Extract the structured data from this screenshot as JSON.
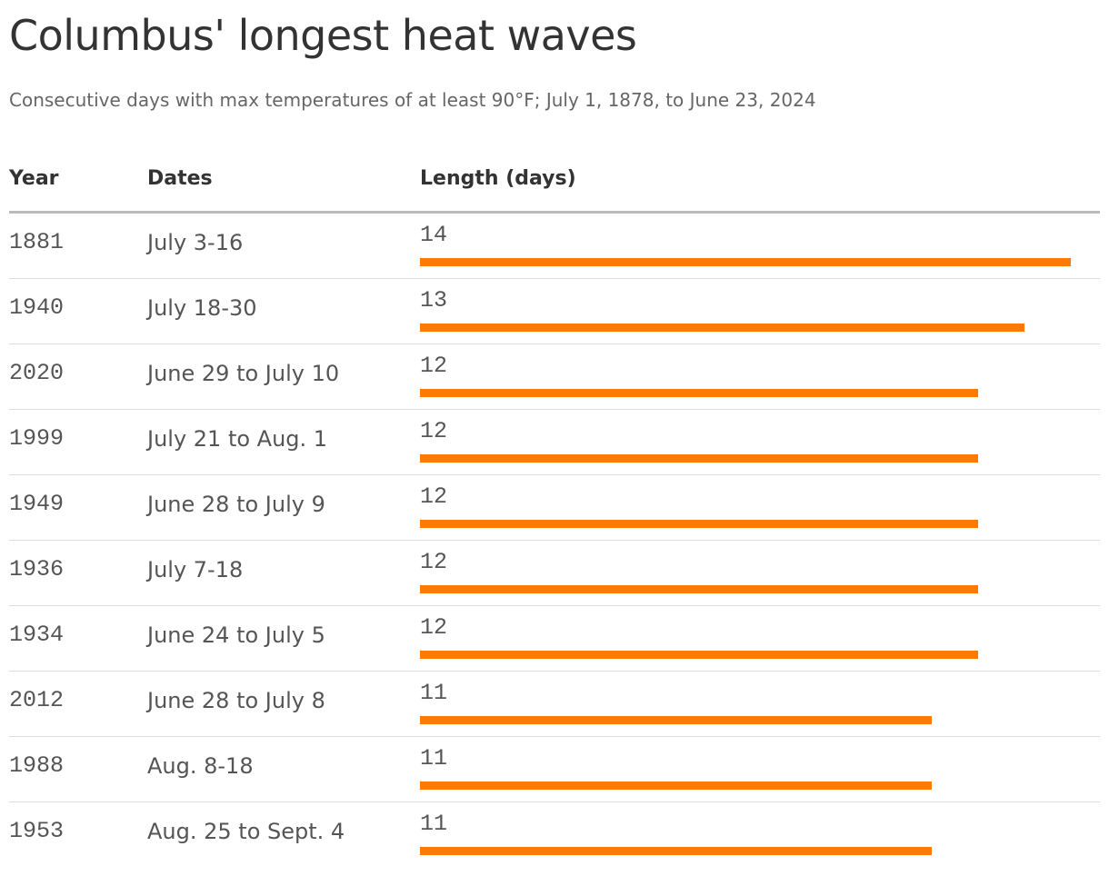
{
  "title": "Columbus' longest heat waves",
  "subtitle": "Consecutive days with max temperatures of at least 90°F; July 1, 1878, to June 23, 2024",
  "table": {
    "columns": [
      "Year",
      "Dates",
      "Length (days)"
    ],
    "bar_color": "#ff7a00",
    "rows": [
      {
        "year": "1881",
        "dates": "July 3-16",
        "length": 14
      },
      {
        "year": "1940",
        "dates": "July 18-30",
        "length": 13
      },
      {
        "year": "2020",
        "dates": "June 29 to July 10",
        "length": 12
      },
      {
        "year": "1999",
        "dates": "July 21 to Aug. 1",
        "length": 12
      },
      {
        "year": "1949",
        "dates": "June 28 to July 9",
        "length": 12
      },
      {
        "year": "1936",
        "dates": "July 7-18",
        "length": 12
      },
      {
        "year": "1934",
        "dates": "June 24 to July 5",
        "length": 12
      },
      {
        "year": "2012",
        "dates": "June 28 to July 8",
        "length": 11
      },
      {
        "year": "1988",
        "dates": "Aug. 8-18",
        "length": 11
      },
      {
        "year": "1953",
        "dates": "Aug. 25 to Sept. 4",
        "length": 11
      }
    ]
  }
}
